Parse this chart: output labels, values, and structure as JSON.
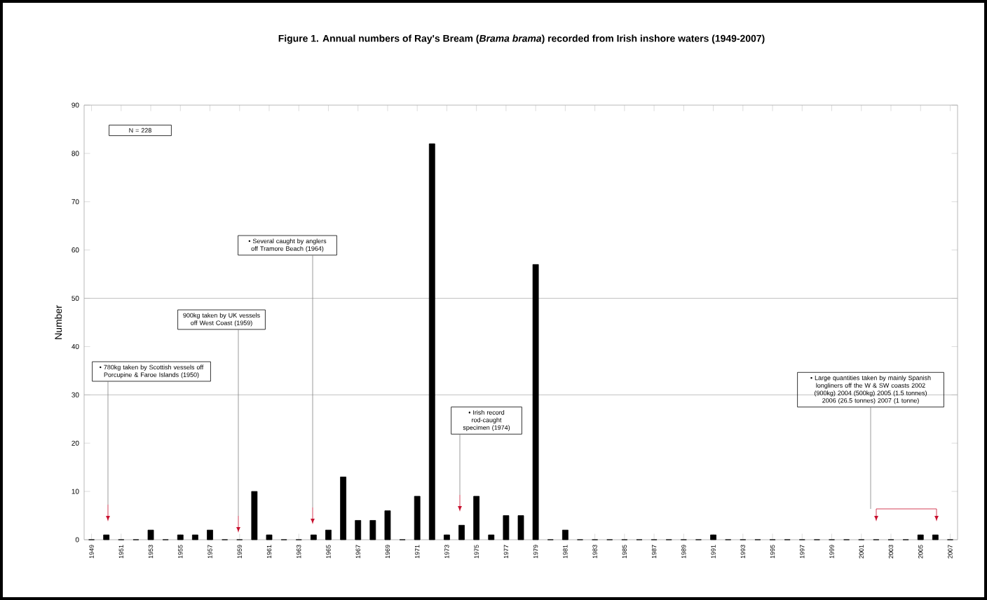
{
  "chart_data": {
    "type": "bar",
    "title": "Figure 1. Annual numbers of Ray's Bream (*Brama brama*) recorded from Irish inshore waters (1949-2007)",
    "ylabel": "Number",
    "categories": [
      "1949",
      null,
      "1951",
      null,
      "1953",
      null,
      "1955",
      null,
      "1957",
      null,
      "1959",
      null,
      "1961",
      null,
      "1963",
      null,
      "1965",
      null,
      "1967",
      null,
      "1969",
      null,
      "1971",
      null,
      "1973",
      null,
      "1975",
      null,
      "1977",
      null,
      "1979",
      null,
      "1981",
      null,
      "1983",
      null,
      "1985",
      null,
      "1987",
      null,
      "1989",
      null,
      "1991",
      null,
      "1993",
      null,
      "1995",
      null,
      "1997",
      null,
      "1999",
      null,
      "2001",
      null,
      "2003",
      null,
      "2005",
      null,
      "2007"
    ],
    "values": [
      0,
      1,
      0,
      0,
      2,
      0,
      1,
      1,
      2,
      0,
      0,
      10,
      1,
      0,
      0,
      1,
      2,
      13,
      4,
      4,
      6,
      0,
      9,
      82,
      1,
      3,
      9,
      1,
      5,
      5,
      57,
      0,
      2,
      0,
      0,
      0,
      0,
      0,
      0,
      0,
      0,
      0,
      1,
      0,
      0,
      0,
      0,
      0,
      0,
      0,
      0,
      0,
      0,
      0,
      0,
      0,
      1,
      1,
      0
    ],
    "color": "#000000",
    "ylim": [
      0,
      90
    ],
    "yticks": [
      0,
      10,
      20,
      30,
      40,
      50,
      60,
      70,
      80,
      90
    ],
    "ref_lines": [
      {
        "axis": "y",
        "value": 30,
        "color": "#b0b0b0"
      },
      {
        "axis": "y",
        "value": 50,
        "color": "#b0b0b0"
      }
    ],
    "annotations": [
      "N = 228",
      "• 780kg taken by Scottish vessels off Porcupine & Faroe Islands (1950)",
      "900kg taken by UK vessels off West Coast (1959)",
      "• Several caught by anglers off Tramore Beach (1964)",
      "• Irish record rod-caught specimen (1974)",
      "• Large quantities taken by mainly Spanish longliners off the W & SW coasts 2002 (900kg) 2004 (500kg) 2005 (1.5 tonnes) 2006 (26.5 tonnes) 2007 (1 tonne)"
    ]
  }
}
